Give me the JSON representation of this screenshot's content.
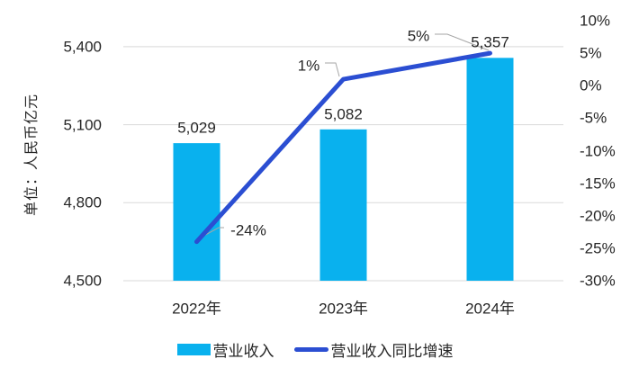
{
  "chart_data": {
    "type": "bar+line",
    "categories": [
      "2022年",
      "2023年",
      "2024年"
    ],
    "series": [
      {
        "name": "营业收入",
        "type": "bar",
        "axis": "left",
        "values": [
          5029,
          5082,
          5357
        ],
        "labels": [
          "5,029",
          "5,082",
          "5,357"
        ],
        "color": "#09b1ee"
      },
      {
        "name": "营业收入同比增速",
        "type": "line",
        "axis": "right",
        "values": [
          -24,
          1,
          5
        ],
        "labels": [
          "-24%",
          "1%",
          "5%"
        ],
        "color": "#2b4ed2"
      }
    ],
    "left_axis": {
      "title": "单位：人民币亿元",
      "range": [
        4500,
        5500
      ],
      "ticks": [
        5400,
        5100,
        4800,
        4500
      ],
      "tick_labels": [
        "5,400",
        "5,100",
        "4,800",
        "4,500"
      ]
    },
    "right_axis": {
      "range": [
        -30,
        10
      ],
      "ticks": [
        10,
        5,
        0,
        -5,
        -10,
        -15,
        -20,
        -25,
        -30
      ],
      "tick_labels": [
        "10%",
        "5%",
        "0%",
        "-5%",
        "-10%",
        "-15%",
        "-20%",
        "-25%",
        "-30%"
      ]
    },
    "legend": [
      {
        "label": "营业收入"
      },
      {
        "label": "营业收入同比增速"
      }
    ],
    "grid": true,
    "legend_position": "bottom"
  },
  "colors": {
    "bar": "#09b1ee",
    "line": "#2b4ed2",
    "grid": "#d9d9d9",
    "leader": "#a6a6a6",
    "text": "#262626",
    "background": "#ffffff"
  }
}
